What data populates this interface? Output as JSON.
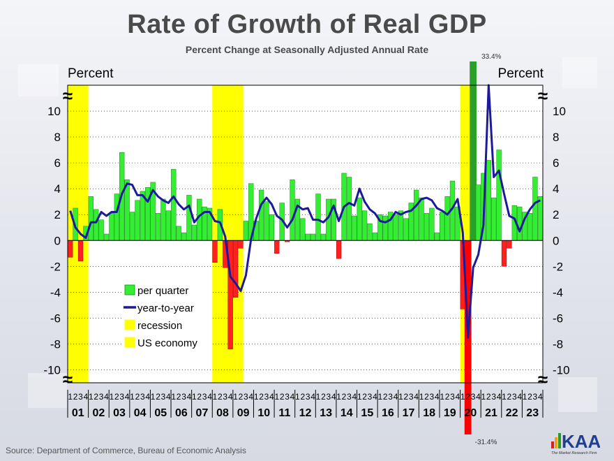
{
  "title": "Rate of Growth of Real GDP",
  "subtitle": "Percent Change at Seasonally Adjusted Annual Rate",
  "source": "Source: Department of Commerce, Bureau of Economic Analysis",
  "logo": {
    "text": "KAA",
    "tagline": "The Market Research Firm"
  },
  "chart_data": {
    "type": "bar",
    "y_axis_left_label": "Percent",
    "y_axis_right_label": "Percent",
    "ylim": [
      -11,
      12
    ],
    "yticks": [
      -10,
      -8,
      -6,
      -4,
      -2,
      0,
      2,
      4,
      6,
      8,
      10
    ],
    "grid": true,
    "legend_position": "bottom-left",
    "legend": [
      "per quarter",
      "year-to-year",
      "recession",
      "US economy"
    ],
    "quarter_labels": [
      "1",
      "2",
      "3",
      "4"
    ],
    "years": [
      "01",
      "02",
      "03",
      "04",
      "05",
      "06",
      "07",
      "08",
      "09",
      "10",
      "11",
      "12",
      "13",
      "14",
      "15",
      "16",
      "17",
      "18",
      "19",
      "20",
      "21",
      "22",
      "23"
    ],
    "recessions": [
      {
        "start": "2001Q1",
        "end": "2001Q4"
      },
      {
        "start": "2008Q1",
        "end": "2009Q2"
      },
      {
        "start": "2020Q1",
        "end": "2020Q2"
      }
    ],
    "offscale_labels": {
      "high": "33.4%",
      "low": "-31.4%"
    },
    "per_quarter": [
      -1.3,
      2.5,
      -1.6,
      1.1,
      3.4,
      2.4,
      1.6,
      0.5,
      2.1,
      3.6,
      6.8,
      4.7,
      2.2,
      3.1,
      3.8,
      4.1,
      4.5,
      2.1,
      3.2,
      2.3,
      5.5,
      1.1,
      0.6,
      3.5,
      1.2,
      3.2,
      2.6,
      2.5,
      -1.7,
      2.4,
      -2.1,
      -8.4,
      -4.4,
      -0.6,
      1.5,
      4.4,
      1.5,
      3.9,
      3.0,
      2.0,
      -1.0,
      2.9,
      -0.1,
      4.7,
      3.2,
      1.7,
      0.5,
      0.5,
      3.6,
      0.5,
      3.2,
      3.2,
      -1.4,
      5.2,
      4.9,
      1.9,
      3.3,
      2.3,
      1.3,
      0.6,
      2.0,
      1.9,
      2.2,
      2.0,
      2.3,
      1.7,
      2.9,
      3.9,
      3.3,
      2.1,
      2.5,
      0.6,
      2.2,
      3.4,
      4.6,
      2.6,
      -5.3,
      -31.4,
      33.4,
      4.3,
      5.2,
      6.2,
      3.3,
      7.0,
      -2.0,
      -0.6,
      2.7,
      2.6,
      2.2,
      2.1,
      4.9,
      3.4
    ],
    "year_to_year": [
      2.3,
      1.0,
      0.5,
      0.2,
      1.4,
      1.4,
      2.2,
      1.9,
      2.2,
      2.2,
      3.6,
      4.4,
      4.3,
      3.5,
      3.5,
      3.0,
      3.9,
      3.4,
      3.1,
      2.9,
      3.4,
      2.8,
      2.4,
      2.7,
      1.4,
      1.9,
      2.2,
      2.2,
      1.5,
      1.4,
      0.3,
      -2.8,
      -3.3,
      -3.9,
      -2.7,
      0.1,
      1.7,
      2.8,
      3.3,
      2.8,
      1.9,
      1.6,
      1.0,
      1.6,
      2.7,
      2.4,
      2.5,
      1.6,
      1.6,
      1.4,
      1.8,
      2.7,
      1.5,
      2.6,
      2.9,
      2.7,
      4.0,
      3.0,
      2.4,
      2.1,
      1.5,
      1.4,
      1.6,
      2.2,
      2.0,
      2.2,
      2.3,
      2.7,
      3.2,
      3.3,
      3.1,
      2.5,
      2.3,
      2.0,
      2.5,
      3.2,
      0.6,
      -7.5,
      -2.1,
      -1.1,
      1.2,
      12.0,
      4.9,
      5.4,
      3.6,
      1.9,
      1.7,
      0.7,
      1.7,
      2.4,
      2.9,
      3.1
    ]
  }
}
